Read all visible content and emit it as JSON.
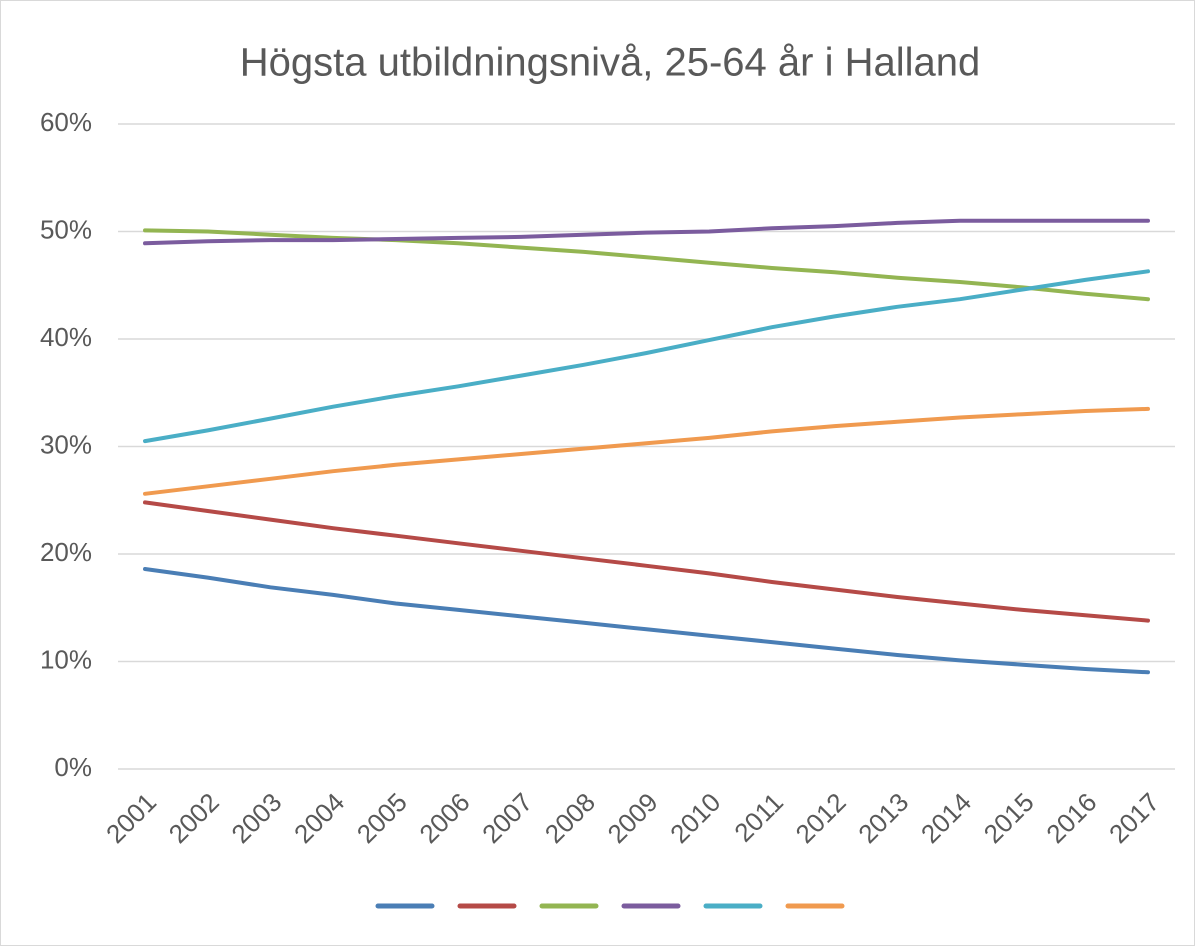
{
  "chart_data": {
    "type": "line",
    "title": "Högsta utbildningsnivå, 25-64 år i Halland",
    "categories": [
      "2001",
      "2002",
      "2003",
      "2004",
      "2005",
      "2006",
      "2007",
      "2008",
      "2009",
      "2010",
      "2011",
      "2012",
      "2013",
      "2014",
      "2015",
      "2016",
      "2017"
    ],
    "series": [
      {
        "color": "#4a7eb5",
        "values": [
          18.6,
          17.8,
          16.9,
          16.2,
          15.4,
          14.8,
          14.2,
          13.6,
          13.0,
          12.4,
          11.8,
          11.2,
          10.6,
          10.1,
          9.7,
          9.3,
          9.0
        ]
      },
      {
        "color": "#b54a47",
        "values": [
          24.8,
          24.0,
          23.2,
          22.4,
          21.7,
          21.0,
          20.3,
          19.6,
          18.9,
          18.2,
          17.4,
          16.7,
          16.0,
          15.4,
          14.8,
          14.3,
          13.8
        ]
      },
      {
        "color": "#93b552",
        "values": [
          50.1,
          50.0,
          49.7,
          49.4,
          49.2,
          48.9,
          48.5,
          48.1,
          47.6,
          47.1,
          46.6,
          46.2,
          45.7,
          45.3,
          44.8,
          44.2,
          43.7
        ]
      },
      {
        "color": "#7b5c9e",
        "values": [
          48.9,
          49.1,
          49.2,
          49.2,
          49.3,
          49.4,
          49.5,
          49.7,
          49.9,
          50.0,
          50.3,
          50.5,
          50.8,
          51.0,
          51.0,
          51.0,
          51.0
        ]
      },
      {
        "color": "#4aaec6",
        "values": [
          30.5,
          31.5,
          32.6,
          33.7,
          34.7,
          35.6,
          36.6,
          37.6,
          38.7,
          39.9,
          41.1,
          42.1,
          43.0,
          43.7,
          44.6,
          45.5,
          46.3
        ]
      },
      {
        "color": "#f09a4f",
        "values": [
          25.6,
          26.3,
          27.0,
          27.7,
          28.3,
          28.8,
          29.3,
          29.8,
          30.3,
          30.8,
          31.4,
          31.9,
          32.3,
          32.7,
          33.0,
          33.3,
          33.5
        ]
      }
    ],
    "ylim": [
      0,
      60
    ],
    "yticks": [
      {
        "value": 0,
        "label": "0%"
      },
      {
        "value": 10,
        "label": "10%"
      },
      {
        "value": 20,
        "label": "20%"
      },
      {
        "value": 30,
        "label": "30%"
      },
      {
        "value": 40,
        "label": "40%"
      },
      {
        "value": 50,
        "label": "50%"
      },
      {
        "value": 60,
        "label": "60%"
      }
    ],
    "grid": true
  }
}
